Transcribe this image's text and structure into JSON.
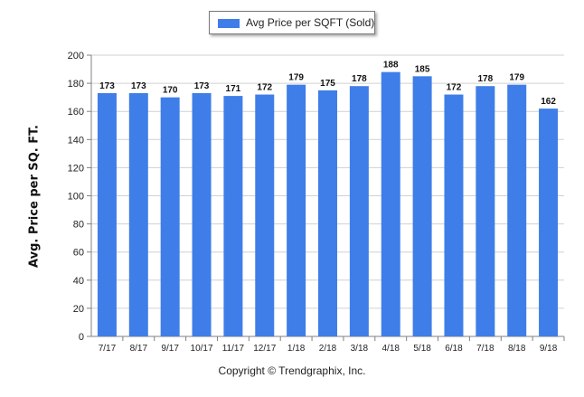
{
  "legend": {
    "label": "Avg Price per SQFT (Sold)"
  },
  "copyright": "Copyright © Trendgraphix, Inc.",
  "colors": {
    "bar": "#3f7ee8",
    "grid": "#d0d0d0",
    "axis": "#808080"
  },
  "chart_data": {
    "type": "bar",
    "title": "",
    "xlabel": "",
    "ylabel": "Avg. Price per SQ. FT.",
    "ylim": [
      0,
      200
    ],
    "yticks": [
      0,
      20,
      40,
      60,
      80,
      100,
      120,
      140,
      160,
      180,
      200
    ],
    "grid": true,
    "legend_position": "top-center",
    "categories": [
      "7/17",
      "8/17",
      "9/17",
      "10/17",
      "11/17",
      "12/17",
      "1/18",
      "2/18",
      "3/18",
      "4/18",
      "5/18",
      "6/18",
      "7/18",
      "8/18",
      "9/18"
    ],
    "series": [
      {
        "name": "Avg Price per SQFT (Sold)",
        "values": [
          173,
          173,
          170,
          173,
          171,
          172,
          179,
          175,
          178,
          188,
          185,
          172,
          178,
          179,
          162
        ]
      }
    ]
  }
}
